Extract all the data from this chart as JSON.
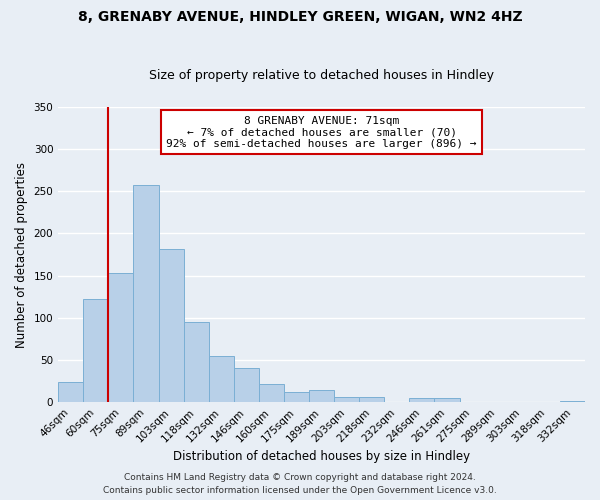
{
  "title": "8, GRENABY AVENUE, HINDLEY GREEN, WIGAN, WN2 4HZ",
  "subtitle": "Size of property relative to detached houses in Hindley",
  "xlabel": "Distribution of detached houses by size in Hindley",
  "ylabel": "Number of detached properties",
  "bar_labels": [
    "46sqm",
    "60sqm",
    "75sqm",
    "89sqm",
    "103sqm",
    "118sqm",
    "132sqm",
    "146sqm",
    "160sqm",
    "175sqm",
    "189sqm",
    "203sqm",
    "218sqm",
    "232sqm",
    "246sqm",
    "261sqm",
    "275sqm",
    "289sqm",
    "303sqm",
    "318sqm",
    "332sqm"
  ],
  "bar_values": [
    24,
    122,
    153,
    257,
    181,
    95,
    55,
    40,
    22,
    12,
    14,
    6,
    6,
    0,
    5,
    5,
    0,
    0,
    0,
    0,
    2
  ],
  "bar_color": "#b8d0e8",
  "bar_edge_color": "#7bafd4",
  "ylim": [
    0,
    350
  ],
  "yticks": [
    0,
    50,
    100,
    150,
    200,
    250,
    300,
    350
  ],
  "marker_label": "8 GRENABY AVENUE: 71sqm",
  "annotation_line1": "← 7% of detached houses are smaller (70)",
  "annotation_line2": "92% of semi-detached houses are larger (896) →",
  "annotation_box_color": "#ffffff",
  "annotation_box_edge": "#cc0000",
  "marker_line_color": "#cc0000",
  "footer1": "Contains HM Land Registry data © Crown copyright and database right 2024.",
  "footer2": "Contains public sector information licensed under the Open Government Licence v3.0.",
  "background_color": "#e8eef5",
  "plot_background": "#e8eef5",
  "grid_color": "#ffffff",
  "title_fontsize": 10,
  "subtitle_fontsize": 9,
  "axis_label_fontsize": 8.5,
  "tick_fontsize": 7.5,
  "annotation_fontsize": 8,
  "footer_fontsize": 6.5
}
